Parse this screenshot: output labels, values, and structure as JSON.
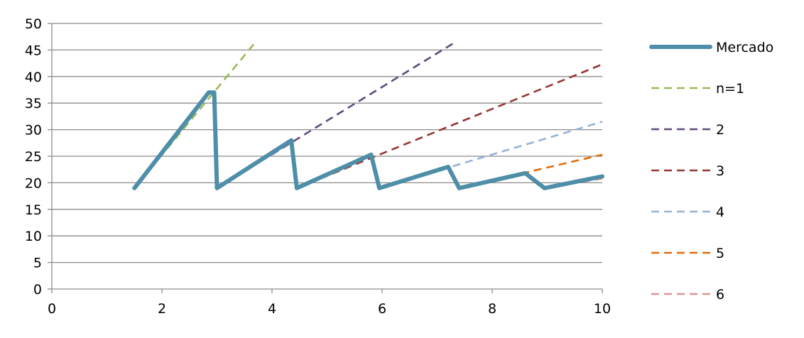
{
  "chart_data": {
    "type": "line",
    "title": "",
    "xlabel": "",
    "ylabel": "",
    "xlim": [
      0,
      10
    ],
    "ylim": [
      0,
      50
    ],
    "xticks": [
      0,
      2,
      4,
      6,
      8,
      10
    ],
    "yticks": [
      0,
      5,
      10,
      15,
      20,
      25,
      30,
      35,
      40,
      45,
      50
    ],
    "grid": "horizontal",
    "legend": "right",
    "series": [
      {
        "name": "Mercado",
        "color": "#4e8ea8",
        "style": "solid",
        "points": [
          [
            1.5,
            19
          ],
          [
            2.85,
            37
          ],
          [
            2.95,
            37
          ],
          [
            3.0,
            19
          ],
          [
            4.35,
            28
          ],
          [
            4.45,
            19
          ],
          [
            5.8,
            25.3
          ],
          [
            5.95,
            19
          ],
          [
            7.2,
            23
          ],
          [
            7.4,
            19
          ],
          [
            8.6,
            21.8
          ],
          [
            8.95,
            19
          ],
          [
            10,
            21.2
          ]
        ]
      },
      {
        "name": "n=1",
        "color": "#9bbb59",
        "style": "dashed",
        "points": [
          [
            1.5,
            19
          ],
          [
            3.7,
            46.5
          ]
        ]
      },
      {
        "name": "2",
        "color": "#604a7b",
        "style": "dashed",
        "points": [
          [
            3.0,
            19
          ],
          [
            7.3,
            46.3
          ]
        ]
      },
      {
        "name": "3",
        "color": "#953735",
        "style": "dashed",
        "points": [
          [
            4.45,
            19
          ],
          [
            10,
            42.3
          ]
        ]
      },
      {
        "name": "4",
        "color": "#95b3d7",
        "style": "dashed",
        "points": [
          [
            5.95,
            19
          ],
          [
            10,
            31.5
          ]
        ]
      },
      {
        "name": "5",
        "color": "#e46c0a",
        "style": "dashed",
        "points": [
          [
            7.4,
            19
          ],
          [
            10,
            25.3
          ]
        ]
      },
      {
        "name": "6",
        "color": "#d99694",
        "style": "dashed",
        "points": [
          [
            8.95,
            19
          ],
          [
            10,
            20.8
          ]
        ]
      }
    ]
  }
}
